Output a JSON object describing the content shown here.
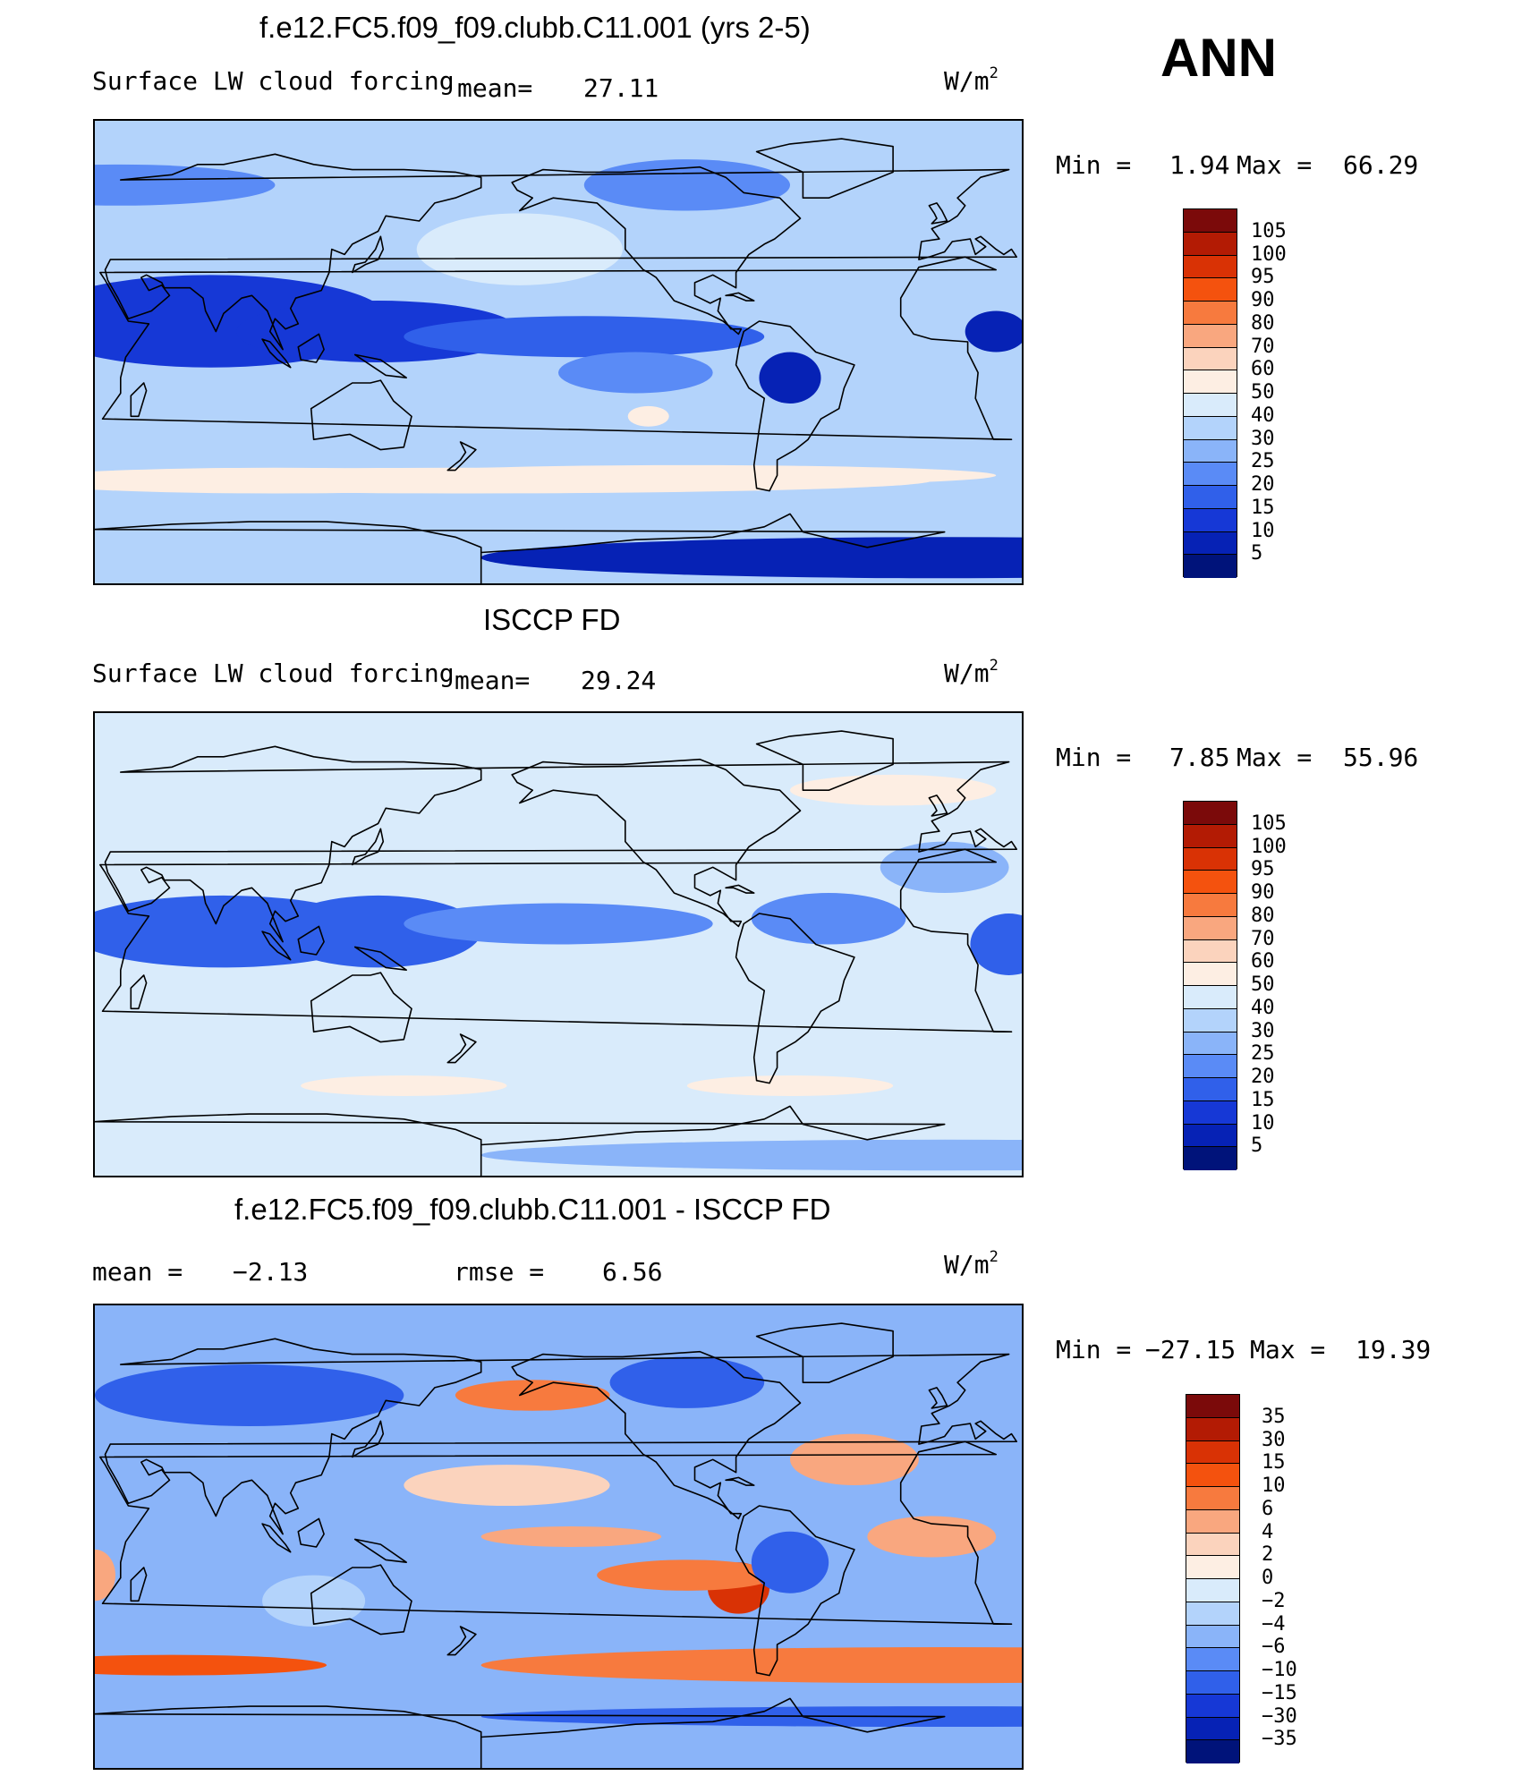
{
  "season": "ANN",
  "units_label": "W/m",
  "units_exp": "2",
  "chart_data": [
    {
      "type": "heatmap",
      "title": "f.e12.FC5.f09_f09.clubb.C11.001 (yrs 2-5)",
      "variable": "Surface LW cloud forcing",
      "mean_label": "mean=",
      "mean": "27.11",
      "min_label": "Min =",
      "min": "1.94",
      "max_label": "Max =",
      "max": "66.29",
      "levels": [
        "105",
        "100",
        "95",
        "90",
        "80",
        "70",
        "60",
        "50",
        "40",
        "30",
        "25",
        "20",
        "15",
        "10",
        "5"
      ],
      "colors": [
        "#7b0a0a",
        "#b31b04",
        "#d93205",
        "#f4520e",
        "#f77a3e",
        "#f9a77f",
        "#fbd3bd",
        "#fdeee3",
        "#d9ebfb",
        "#b3d3fb",
        "#8ab4f9",
        "#5a8bf6",
        "#3060ea",
        "#1638d6",
        "#0622b5",
        "#00137a"
      ]
    },
    {
      "type": "heatmap",
      "title": "ISCCP FD",
      "variable": "Surface LW cloud forcing",
      "mean_label": "mean=",
      "mean": "29.24",
      "min_label": "Min =",
      "min": "7.85",
      "max_label": "Max =",
      "max": "55.96",
      "levels": [
        "105",
        "100",
        "95",
        "90",
        "80",
        "70",
        "60",
        "50",
        "40",
        "30",
        "25",
        "20",
        "15",
        "10",
        "5"
      ],
      "colors": [
        "#7b0a0a",
        "#b31b04",
        "#d93205",
        "#f4520e",
        "#f77a3e",
        "#f9a77f",
        "#fbd3bd",
        "#fdeee3",
        "#d9ebfb",
        "#b3d3fb",
        "#8ab4f9",
        "#5a8bf6",
        "#3060ea",
        "#1638d6",
        "#0622b5",
        "#00137a"
      ]
    },
    {
      "type": "heatmap",
      "title": "f.e12.FC5.f09_f09.clubb.C11.001 - ISCCP FD",
      "mean_label": "mean =",
      "mean": "−2.13",
      "rmse_label": "rmse =",
      "rmse": "6.56",
      "min_label": "Min =",
      "min": "−27.15",
      "max_label": "Max =",
      "max": "19.39",
      "levels": [
        "35",
        "30",
        "15",
        "10",
        "6",
        "4",
        "2",
        "0",
        "−2",
        "−4",
        "−6",
        "−10",
        "−15",
        "−30",
        "−35"
      ],
      "colors": [
        "#7b0a0a",
        "#b31b04",
        "#d93205",
        "#f4520e",
        "#f77a3e",
        "#f9a77f",
        "#fbd3bd",
        "#fdeee3",
        "#d9ebfb",
        "#b3d3fb",
        "#8ab4f9",
        "#5a8bf6",
        "#3060ea",
        "#1638d6",
        "#0622b5",
        "#00137a"
      ]
    }
  ]
}
